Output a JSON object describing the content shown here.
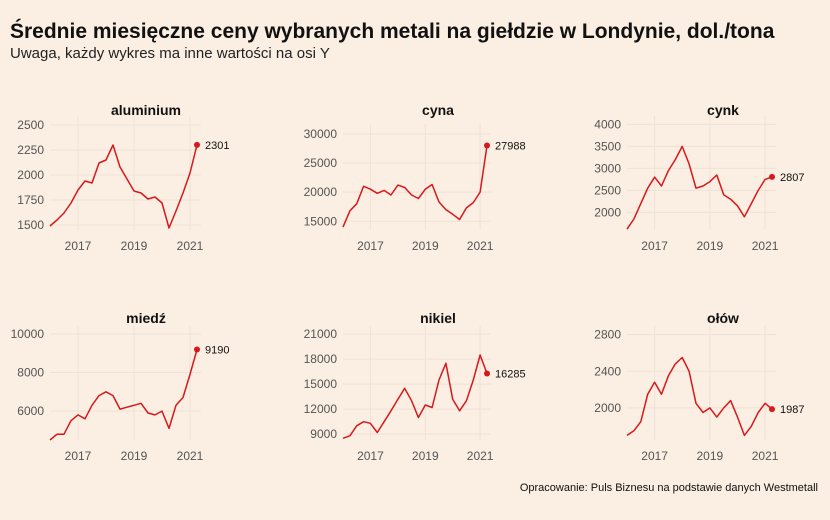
{
  "title": "Średnie miesięczne ceny wybranych metali na giełdzie w Londynie, dol./tona",
  "subtitle": "Uwaga, każdy wykres ma inne wartości na osi Y",
  "source": "Opracowanie: Puls Biznesu na podstawie danych Westmetall",
  "colors": {
    "background": "#fbeee2",
    "line": "#d7191c",
    "grid": "#efe2d6"
  },
  "chart_data": [
    {
      "type": "line",
      "title": "aluminium",
      "x_ticks": [
        "2017",
        "2019",
        "2021"
      ],
      "y_ticks": [
        1500,
        1750,
        2000,
        2250,
        2500
      ],
      "ylim": [
        1450,
        2550
      ],
      "xlim": [
        2016.0,
        2021.25
      ],
      "last_label": "2301",
      "x": [
        2016.0,
        2016.25,
        2016.5,
        2016.75,
        2017.0,
        2017.25,
        2017.5,
        2017.75,
        2018.0,
        2018.25,
        2018.5,
        2018.75,
        2019.0,
        2019.25,
        2019.5,
        2019.75,
        2020.0,
        2020.25,
        2020.5,
        2020.75,
        2021.0,
        2021.25
      ],
      "values": [
        1490,
        1550,
        1620,
        1720,
        1850,
        1940,
        1920,
        2120,
        2150,
        2300,
        2080,
        1960,
        1840,
        1820,
        1760,
        1780,
        1720,
        1470,
        1640,
        1820,
        2020,
        2301
      ]
    },
    {
      "type": "line",
      "title": "cyna",
      "x_ticks": [
        "2017",
        "2019",
        "2021"
      ],
      "y_ticks": [
        15000,
        20000,
        25000,
        30000
      ],
      "ylim": [
        13500,
        31000
      ],
      "xlim": [
        2016.0,
        2021.25
      ],
      "last_label": "27988",
      "x": [
        2016.0,
        2016.25,
        2016.5,
        2016.75,
        2017.0,
        2017.25,
        2017.5,
        2017.75,
        2018.0,
        2018.25,
        2018.5,
        2018.75,
        2019.0,
        2019.25,
        2019.5,
        2019.75,
        2020.0,
        2020.25,
        2020.5,
        2020.75,
        2021.0,
        2021.25
      ],
      "values": [
        14000,
        16800,
        18000,
        21000,
        20500,
        19800,
        20300,
        19500,
        21200,
        20800,
        19500,
        18900,
        20500,
        21300,
        18300,
        17000,
        16200,
        15300,
        17300,
        18200,
        20000,
        27988
      ]
    },
    {
      "type": "line",
      "title": "cynk",
      "x_ticks": [
        "2017",
        "2019",
        "2021"
      ],
      "y_ticks": [
        2000,
        2500,
        3000,
        3500,
        4000
      ],
      "ylim": [
        1600,
        4100
      ],
      "xlim": [
        2016.0,
        2021.25
      ],
      "last_label": "2807",
      "x": [
        2016.0,
        2016.25,
        2016.5,
        2016.75,
        2017.0,
        2017.25,
        2017.5,
        2017.75,
        2018.0,
        2018.25,
        2018.5,
        2018.75,
        2019.0,
        2019.25,
        2019.5,
        2019.75,
        2020.0,
        2020.25,
        2020.5,
        2020.75,
        2021.0,
        2021.25
      ],
      "values": [
        1620,
        1850,
        2200,
        2550,
        2800,
        2600,
        2950,
        3200,
        3500,
        3100,
        2550,
        2600,
        2700,
        2850,
        2400,
        2300,
        2150,
        1900,
        2200,
        2500,
        2750,
        2807
      ]
    },
    {
      "type": "line",
      "title": "miedź",
      "x_ticks": [
        "2017",
        "2019",
        "2021"
      ],
      "y_ticks": [
        6000,
        8000,
        10000
      ],
      "ylim": [
        4500,
        10200
      ],
      "xlim": [
        2016.0,
        2021.25
      ],
      "last_label": "9190",
      "x": [
        2016.0,
        2016.25,
        2016.5,
        2016.75,
        2017.0,
        2017.25,
        2017.5,
        2017.75,
        2018.0,
        2018.25,
        2018.5,
        2018.75,
        2019.0,
        2019.25,
        2019.5,
        2019.75,
        2020.0,
        2020.25,
        2020.5,
        2020.75,
        2021.0,
        2021.25
      ],
      "values": [
        4500,
        4800,
        4800,
        5500,
        5800,
        5600,
        6300,
        6800,
        7000,
        6800,
        6100,
        6200,
        6300,
        6400,
        5900,
        5800,
        6000,
        5100,
        6300,
        6700,
        7900,
        9190
      ]
    },
    {
      "type": "line",
      "title": "nikiel",
      "x_ticks": [
        "2017",
        "2019",
        "2021"
      ],
      "y_ticks": [
        9000,
        12000,
        15000,
        18000,
        21000
      ],
      "ylim": [
        8300,
        21500
      ],
      "xlim": [
        2016.0,
        2021.25
      ],
      "last_label": "16285",
      "x": [
        2016.0,
        2016.25,
        2016.5,
        2016.75,
        2017.0,
        2017.25,
        2017.5,
        2017.75,
        2018.0,
        2018.25,
        2018.5,
        2018.75,
        2019.0,
        2019.25,
        2019.5,
        2019.75,
        2020.0,
        2020.25,
        2020.5,
        2020.75,
        2021.0,
        2021.25
      ],
      "values": [
        8500,
        8800,
        10000,
        10500,
        10300,
        9200,
        10500,
        11800,
        13200,
        14500,
        13000,
        11000,
        12500,
        12200,
        15500,
        17500,
        13200,
        11800,
        13000,
        15500,
        18500,
        16285
      ]
    },
    {
      "type": "line",
      "title": "ołów",
      "x_ticks": [
        "2017",
        "2019",
        "2021"
      ],
      "y_ticks": [
        2000,
        2400,
        2800
      ],
      "ylim": [
        1650,
        2850
      ],
      "xlim": [
        2016.0,
        2021.25
      ],
      "last_label": "1987",
      "x": [
        2016.0,
        2016.25,
        2016.5,
        2016.75,
        2017.0,
        2017.25,
        2017.5,
        2017.75,
        2018.0,
        2018.25,
        2018.5,
        2018.75,
        2019.0,
        2019.25,
        2019.5,
        2019.75,
        2020.0,
        2020.25,
        2020.5,
        2020.75,
        2021.0,
        2021.25
      ],
      "values": [
        1700,
        1750,
        1850,
        2150,
        2280,
        2150,
        2350,
        2480,
        2550,
        2400,
        2050,
        1950,
        2000,
        1900,
        2000,
        2080,
        1900,
        1700,
        1800,
        1950,
        2050,
        1987
      ]
    }
  ]
}
